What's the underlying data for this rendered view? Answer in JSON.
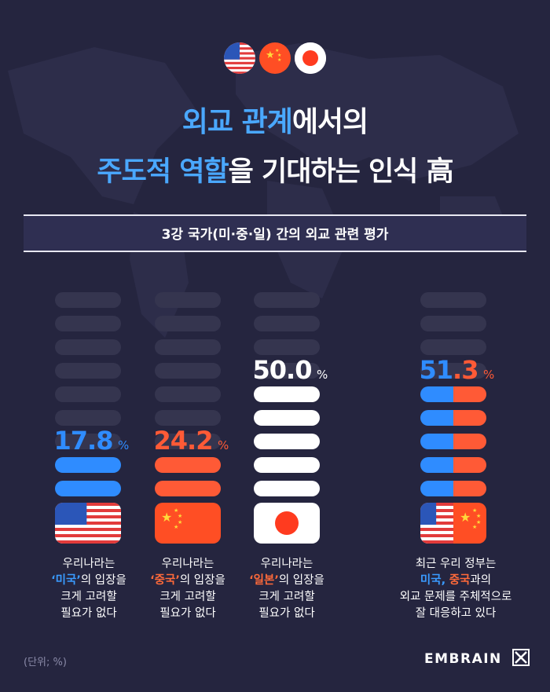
{
  "header": {
    "flag_icons": [
      "us-flag-icon",
      "china-flag-icon",
      "japan-flag-icon"
    ],
    "title_line1_highlight": "외교 관계",
    "title_line1_rest": "에서의",
    "title_line2_highlight": "주도적 역할",
    "title_line2_rest": "을 기대하는 인식 高"
  },
  "banner": {
    "text": "3강 국가(미·중·일) 간의 외교 관련 평가"
  },
  "chart_data": {
    "type": "bar",
    "unit": "%",
    "categories": [
      "미국",
      "중국",
      "일본",
      "미국, 중국"
    ],
    "values": [
      17.8,
      24.2,
      50.0,
      51.3
    ],
    "value_labels": [
      "17.8",
      "24.2",
      "50.0",
      "51.3"
    ],
    "ylim": [
      0,
      100
    ]
  },
  "captions": [
    {
      "line1": "우리나라는",
      "q": "‘미국’",
      "rest": "의 입장을",
      "line3": "크게 고려할",
      "line4": "필요가 없다"
    },
    {
      "line1": "우리나라는",
      "q": "‘중국’",
      "rest": "의 입장을",
      "line3": "크게 고려할",
      "line4": "필요가 없다"
    },
    {
      "line1": "우리나라는",
      "q": "‘일본’",
      "rest": "의 입장을",
      "line3": "크게 고려할",
      "line4": "필요가 없다"
    },
    {
      "line1": "최근 우리 정부는",
      "q_blue": "미국,",
      "q_red": "중국",
      "rest": "과의",
      "line3": "외교 문제를 주체적으로",
      "line4": "잘 대응하고 있다"
    }
  ],
  "footer": {
    "unit_note": "(단위; %)",
    "brand": "EMBRAIN"
  },
  "colors": {
    "background": "#25253f",
    "bar_empty": "#35354f",
    "us_blue": "#2f8cff",
    "china_red": "#ff5a36",
    "japan_white": "#ffffff"
  }
}
